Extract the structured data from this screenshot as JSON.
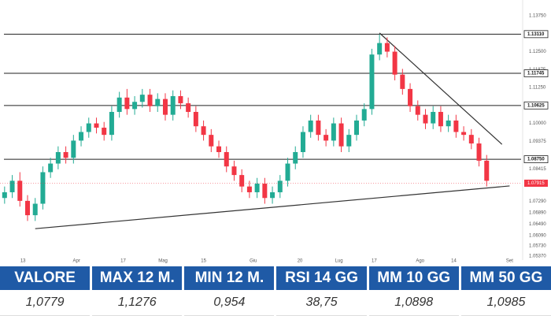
{
  "chart_data": {
    "type": "candlestick",
    "open": [
      1.074,
      1.076,
      1.08,
      1.073,
      1.068,
      1.072,
      1.083,
      1.086,
      1.09,
      1.088,
      1.094,
      1.097,
      1.1,
      1.0985,
      1.096,
      1.104,
      1.109,
      1.105,
      1.1075,
      1.11,
      1.106,
      1.1085,
      1.103,
      1.1095,
      1.107,
      1.104,
      1.099,
      1.096,
      1.092,
      1.09,
      1.085,
      1.082,
      1.078,
      1.076,
      1.079,
      1.074,
      1.076,
      1.08,
      1.086,
      1.09,
      1.097,
      1.101,
      1.096,
      1.094,
      1.1,
      1.092,
      1.096,
      1.101,
      1.105,
      1.124,
      1.128,
      1.125,
      1.117,
      1.112,
      1.106,
      1.103,
      1.1,
      1.104,
      1.099,
      1.101,
      1.097,
      1.096,
      1.093,
      1.087
    ],
    "high": [
      1.078,
      1.082,
      1.083,
      1.075,
      1.074,
      1.085,
      1.088,
      1.092,
      1.092,
      1.096,
      1.099,
      1.102,
      1.102,
      1.1005,
      1.106,
      1.111,
      1.112,
      1.1095,
      1.112,
      1.112,
      1.1105,
      1.1105,
      1.1115,
      1.1115,
      1.109,
      1.106,
      1.101,
      1.098,
      1.094,
      1.092,
      1.087,
      1.084,
      1.08,
      1.081,
      1.081,
      1.078,
      1.082,
      1.088,
      1.092,
      1.099,
      1.103,
      1.103,
      1.098,
      1.102,
      1.102,
      1.098,
      1.103,
      1.107,
      1.126,
      1.131,
      1.13,
      1.127,
      1.119,
      1.114,
      1.108,
      1.105,
      1.106,
      1.106,
      1.103,
      1.103,
      1.099,
      1.098,
      1.095,
      1.089
    ],
    "low": [
      1.072,
      1.074,
      1.071,
      1.066,
      1.066,
      1.07,
      1.081,
      1.084,
      1.086,
      1.086,
      1.092,
      1.095,
      1.0965,
      1.094,
      1.094,
      1.102,
      1.103,
      1.103,
      1.1055,
      1.104,
      1.104,
      1.101,
      1.101,
      1.105,
      1.102,
      1.097,
      1.094,
      1.09,
      1.088,
      1.083,
      1.08,
      1.076,
      1.074,
      1.074,
      1.072,
      1.072,
      1.074,
      1.078,
      1.084,
      1.088,
      1.095,
      1.094,
      1.092,
      1.092,
      1.09,
      1.09,
      1.094,
      1.099,
      1.103,
      1.122,
      1.123,
      1.115,
      1.11,
      1.104,
      1.101,
      1.098,
      1.098,
      1.097,
      1.097,
      1.095,
      1.094,
      1.091,
      1.085,
      1.078
    ],
    "close": [
      1.076,
      1.08,
      1.073,
      1.068,
      1.072,
      1.083,
      1.086,
      1.09,
      1.088,
      1.094,
      1.097,
      1.1,
      1.0985,
      1.096,
      1.104,
      1.109,
      1.105,
      1.1075,
      1.11,
      1.106,
      1.1085,
      1.103,
      1.1095,
      1.107,
      1.104,
      1.099,
      1.096,
      1.092,
      1.09,
      1.085,
      1.082,
      1.078,
      1.076,
      1.079,
      1.074,
      1.076,
      1.08,
      1.086,
      1.09,
      1.097,
      1.101,
      1.096,
      1.094,
      1.1,
      1.092,
      1.096,
      1.101,
      1.105,
      1.124,
      1.128,
      1.125,
      1.117,
      1.112,
      1.106,
      1.103,
      1.1,
      1.104,
      1.099,
      1.101,
      1.097,
      1.096,
      1.093,
      1.087,
      1.08
    ],
    "up_color": "#22ab94",
    "down_color": "#f23645",
    "xlim": [
      -0.6,
      67.5
    ],
    "xticks": [
      {
        "value": 2.4,
        "label": "13"
      },
      {
        "value": 9.4,
        "label": "Apr"
      },
      {
        "value": 15.5,
        "label": "17"
      },
      {
        "value": 20.7,
        "label": "Mag"
      },
      {
        "value": 26,
        "label": "15"
      },
      {
        "value": 32.5,
        "label": "Giu"
      },
      {
        "value": 38.6,
        "label": "20"
      },
      {
        "value": 43.7,
        "label": "Lug"
      },
      {
        "value": 48.3,
        "label": "17"
      },
      {
        "value": 54.3,
        "label": "Ago"
      },
      {
        "value": 58.7,
        "label": "14"
      },
      {
        "value": 66,
        "label": "Set"
      }
    ],
    "ylim": [
      1.051,
      1.143
    ],
    "yticks": [
      {
        "value": 1.1375,
        "label": "1.13750"
      },
      {
        "value": 1.125,
        "label": "1.12500"
      },
      {
        "value": 1.11875,
        "label": "1.11875"
      },
      {
        "value": 1.1125,
        "label": "1.11250"
      },
      {
        "value": 1.1,
        "label": "1.10000"
      },
      {
        "value": 1.09375,
        "label": "1.09375"
      },
      {
        "value": 1.08415,
        "label": "1.08415"
      },
      {
        "value": 1.0729,
        "label": "1.07290"
      },
      {
        "value": 1.0689,
        "label": "1.06890"
      },
      {
        "value": 1.0649,
        "label": "1.06490"
      },
      {
        "value": 1.0609,
        "label": "1.06090"
      },
      {
        "value": 1.0573,
        "label": "1.05730"
      },
      {
        "value": 1.0537,
        "label": "1.05370"
      }
    ],
    "levels": [
      {
        "value": 1.1311,
        "label": "1.13110"
      },
      {
        "value": 1.11745,
        "label": "1.11745"
      },
      {
        "value": 1.10625,
        "label": "1.10625"
      },
      {
        "value": 1.0875,
        "label": "1.08750"
      }
    ],
    "current_price": {
      "value": 1.07915,
      "label": "1.07915"
    },
    "trendlines": [
      {
        "x": [
          4,
          66
        ],
        "y": [
          1.0633,
          1.0782
        ]
      },
      {
        "x": [
          49,
          65
        ],
        "y": [
          1.1315,
          1.0927
        ]
      }
    ]
  },
  "table": {
    "headers": [
      "VALORE",
      "MAX 12 M.",
      "MIN 12 M.",
      "RSI 14 GG",
      "MM 10 GG",
      "MM 50 GG"
    ],
    "values": [
      "1,0779",
      "1,1276",
      "0,954",
      "38,75",
      "1,0898",
      "1,0985"
    ]
  }
}
